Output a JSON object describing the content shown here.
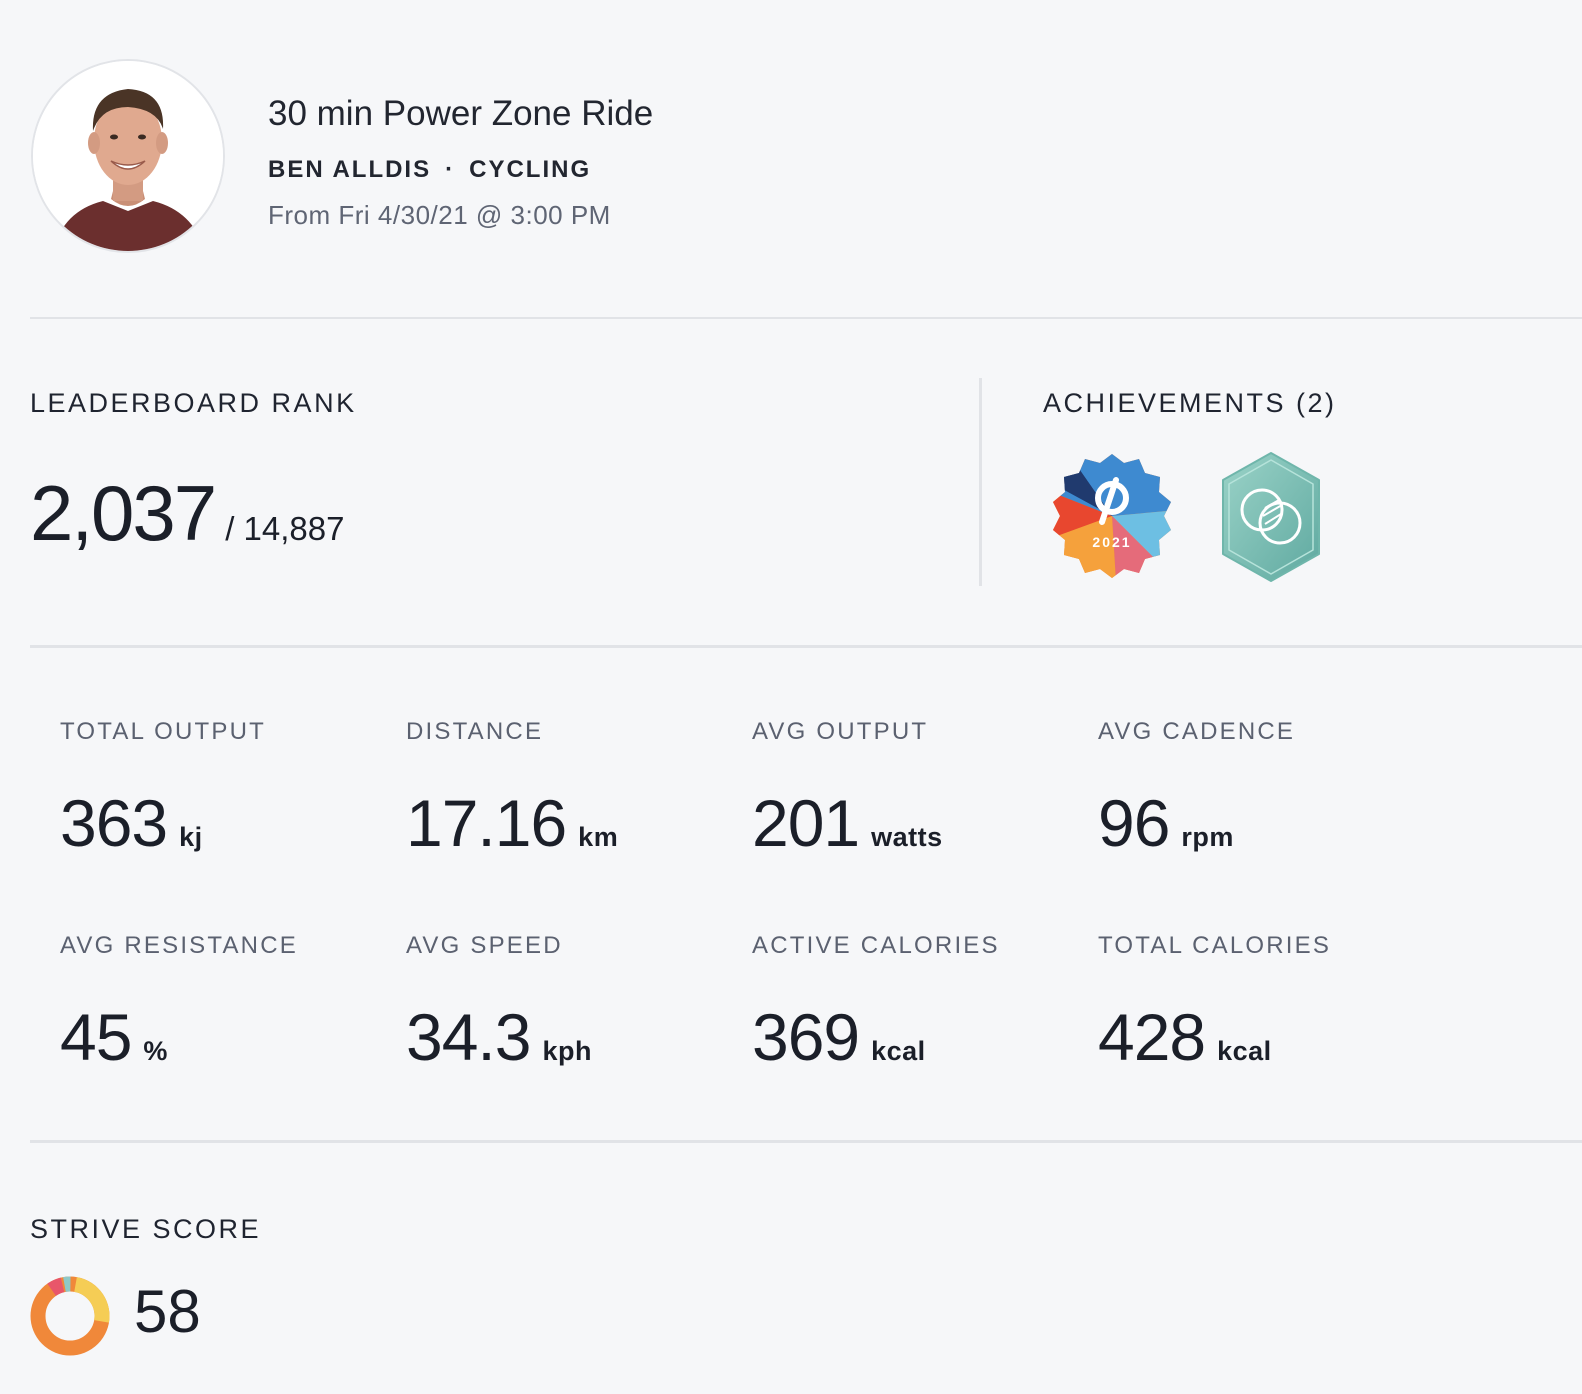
{
  "header": {
    "title": "30 min Power Zone Ride",
    "instructor": "BEN ALLDIS",
    "separator": "·",
    "discipline": "CYCLING",
    "date": "From Fri 4/30/21 @ 3:00 PM"
  },
  "leaderboard": {
    "label": "LEADERBOARD RANK",
    "rank": "2,037",
    "total": "/ 14,887"
  },
  "achievements": {
    "label": "ACHIEVEMENTS (2)",
    "badges": [
      {
        "icon": "peloton-2021-badge-icon",
        "text": "2021"
      },
      {
        "icon": "overlapping-circles-badge-icon"
      }
    ]
  },
  "metrics": [
    {
      "label": "TOTAL OUTPUT",
      "value": "363",
      "unit": "kj"
    },
    {
      "label": "DISTANCE",
      "value": "17.16",
      "unit": "km"
    },
    {
      "label": "AVG OUTPUT",
      "value": "201",
      "unit": "watts"
    },
    {
      "label": "AVG CADENCE",
      "value": "96",
      "unit": "rpm"
    },
    {
      "label": "AVG RESISTANCE",
      "value": "45",
      "unit": "%"
    },
    {
      "label": "AVG SPEED",
      "value": "34.3",
      "unit": "kph"
    },
    {
      "label": "ACTIVE CALORIES",
      "value": "369",
      "unit": "kcal"
    },
    {
      "label": "TOTAL CALORIES",
      "value": "428",
      "unit": "kcal"
    }
  ],
  "strive": {
    "label": "STRIVE SCORE",
    "value": "58",
    "colors": [
      "#f0883a",
      "#f5cd55",
      "#8fc9c7",
      "#e8566a"
    ]
  }
}
